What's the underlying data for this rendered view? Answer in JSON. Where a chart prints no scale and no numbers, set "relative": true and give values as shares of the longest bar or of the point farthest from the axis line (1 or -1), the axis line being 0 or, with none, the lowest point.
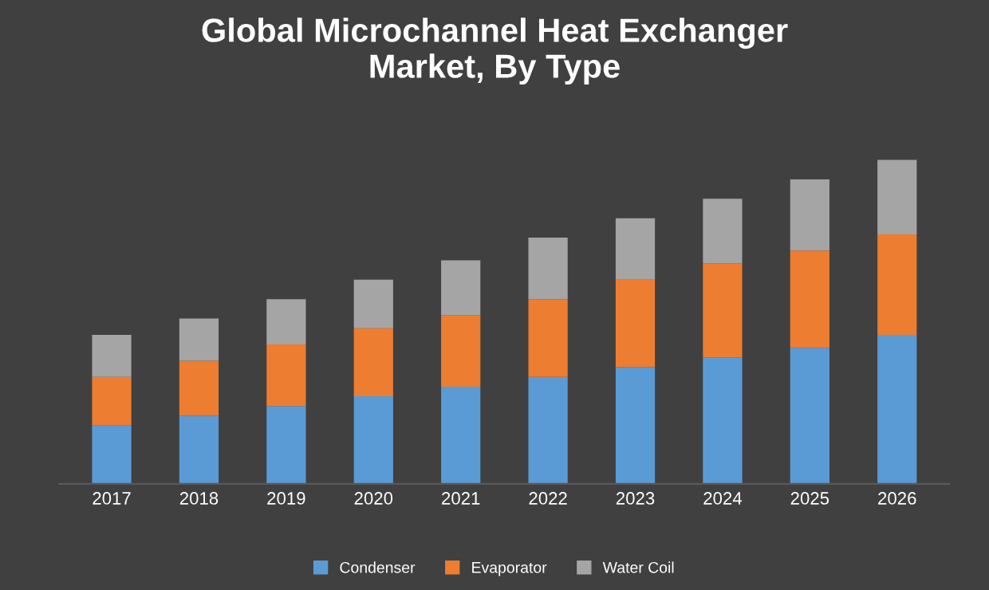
{
  "chart_data": {
    "type": "bar",
    "title": "Global Microchannel Heat Exchanger\nMarket, By Type",
    "stacked": true,
    "relative": true,
    "legend": "bottom",
    "grid": false,
    "categories": [
      "2017",
      "2018",
      "2019",
      "2020",
      "2021",
      "2022",
      "2023",
      "2024",
      "2025",
      "2026"
    ],
    "series": [
      {
        "name": "Condenser",
        "color": "#5b9bd5",
        "values": [
          0.18,
          0.21,
          0.24,
          0.27,
          0.3,
          0.33,
          0.36,
          0.39,
          0.42,
          0.46
        ]
      },
      {
        "name": "Evaporator",
        "color": "#ed7d31",
        "values": [
          0.15,
          0.17,
          0.19,
          0.21,
          0.22,
          0.24,
          0.27,
          0.29,
          0.3,
          0.31
        ]
      },
      {
        "name": "Water Coil",
        "color": "#a5a5a5",
        "values": [
          0.13,
          0.13,
          0.14,
          0.15,
          0.17,
          0.19,
          0.19,
          0.2,
          0.22,
          0.23
        ]
      }
    ]
  }
}
